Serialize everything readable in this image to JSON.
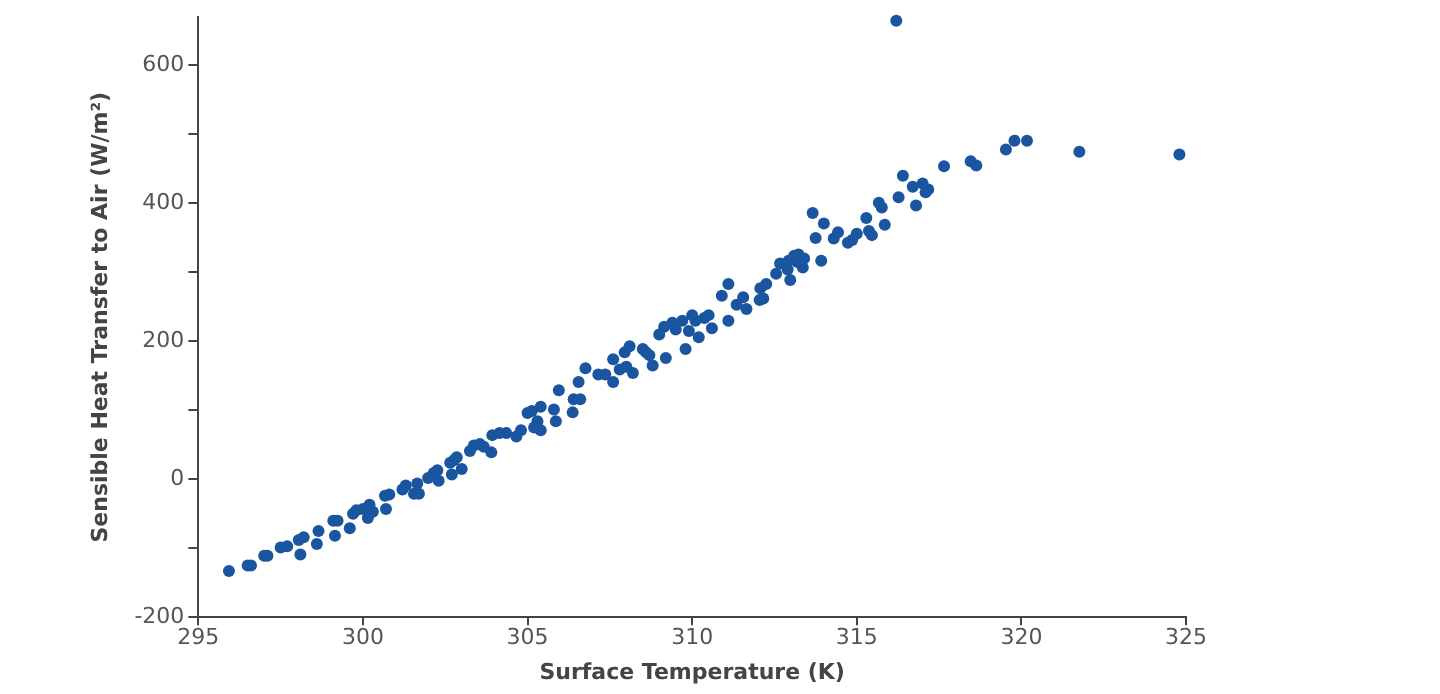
{
  "chart_data": {
    "type": "scatter",
    "xlabel": "Surface Temperature (K)",
    "ylabel": "Sensible Heat Transfer to Air (W/m²)",
    "xlim": [
      295,
      325
    ],
    "xticks": [
      295,
      300,
      305,
      310,
      315,
      320,
      325
    ],
    "ylim": [
      -200,
      670
    ],
    "yticks": [
      -200,
      {
        "value": -100,
        "label": null
      },
      0,
      {
        "value": 100,
        "label": null
      },
      200,
      {
        "value": 300,
        "label": null
      },
      400,
      {
        "value": 500,
        "label": null
      },
      600
    ],
    "grid": false,
    "legend": false,
    "marker": "circle",
    "series": [
      {
        "color": "#1a56a0",
        "x": [
          295.93,
          296.5,
          296.6,
          297.0,
          297.1,
          297.5,
          297.7,
          298.05,
          298.2,
          298.1,
          298.65,
          298.6,
          299.1,
          299.15,
          299.23,
          299.6,
          299.7,
          299.8,
          300.0,
          300.15,
          300.2,
          300.3,
          300.67,
          300.7,
          300.8,
          301.2,
          301.3,
          301.55,
          301.65,
          301.7,
          301.98,
          302.15,
          302.26,
          302.3,
          302.65,
          302.77,
          302.85,
          302.7,
          303.0,
          303.25,
          303.37,
          303.55,
          303.67,
          303.9,
          303.93,
          304.15,
          304.35,
          304.66,
          304.8,
          305.0,
          305.13,
          305.2,
          305.3,
          305.4,
          305.4,
          305.86,
          305.95,
          305.8,
          306.37,
          306.4,
          306.55,
          306.6,
          306.76,
          307.15,
          307.36,
          307.6,
          307.6,
          307.8,
          307.95,
          308.0,
          308.1,
          308.2,
          308.5,
          308.6,
          308.7,
          308.8,
          309.0,
          309.15,
          309.2,
          309.4,
          309.5,
          309.7,
          309.8,
          309.9,
          310.0,
          310.1,
          310.2,
          310.37,
          310.5,
          310.6,
          310.9,
          311.1,
          311.1,
          311.35,
          311.55,
          311.65,
          312.05,
          312.16,
          312.07,
          312.25,
          312.55,
          312.67,
          312.9,
          312.93,
          312.98,
          313.1,
          313.23,
          313.36,
          313.4,
          313.2,
          313.66,
          313.75,
          313.92,
          314.0,
          314.3,
          314.43,
          314.73,
          314.86,
          315.0,
          315.29,
          315.37,
          315.46,
          315.67,
          315.76,
          315.85,
          316.2,
          316.27,
          316.4,
          316.7,
          316.8,
          317.0,
          317.09,
          317.17,
          317.65,
          318.46,
          318.63,
          319.53,
          319.79,
          320.17,
          321.76,
          324.8
        ],
        "values": [
          -133,
          -125,
          -125,
          -111,
          -111,
          -99,
          -97,
          -88,
          -84,
          -109,
          -75,
          -94,
          -60,
          -82,
          -60,
          -71,
          -50,
          -45,
          -43,
          -56,
          -37,
          -47,
          -24,
          -43,
          -22,
          -15,
          -9,
          -21,
          -6,
          -21,
          2,
          9,
          13,
          -2,
          24,
          28,
          32,
          7,
          15,
          41,
          49,
          51,
          47,
          39,
          64,
          67,
          67,
          62,
          71,
          96,
          99,
          75,
          84,
          105,
          71,
          84,
          129,
          101,
          97,
          116,
          141,
          116,
          161,
          152,
          152,
          141,
          174,
          159,
          184,
          163,
          193,
          154,
          189,
          184,
          180,
          165,
          210,
          221,
          176,
          227,
          217,
          230,
          189,
          215,
          238,
          230,
          206,
          234,
          238,
          219,
          266,
          283,
          230,
          253,
          264,
          247,
          260,
          262,
          277,
          283,
          298,
          313,
          304,
          317,
          289,
          324,
          326,
          307,
          320,
          315,
          386,
          350,
          317,
          371,
          349,
          358,
          343,
          347,
          356,
          379,
          360,
          354,
          401,
          394,
          369,
          665,
          409,
          440,
          424,
          397,
          429,
          416,
          420,
          454,
          461,
          455,
          478,
          491,
          491,
          475,
          471
        ]
      }
    ]
  }
}
